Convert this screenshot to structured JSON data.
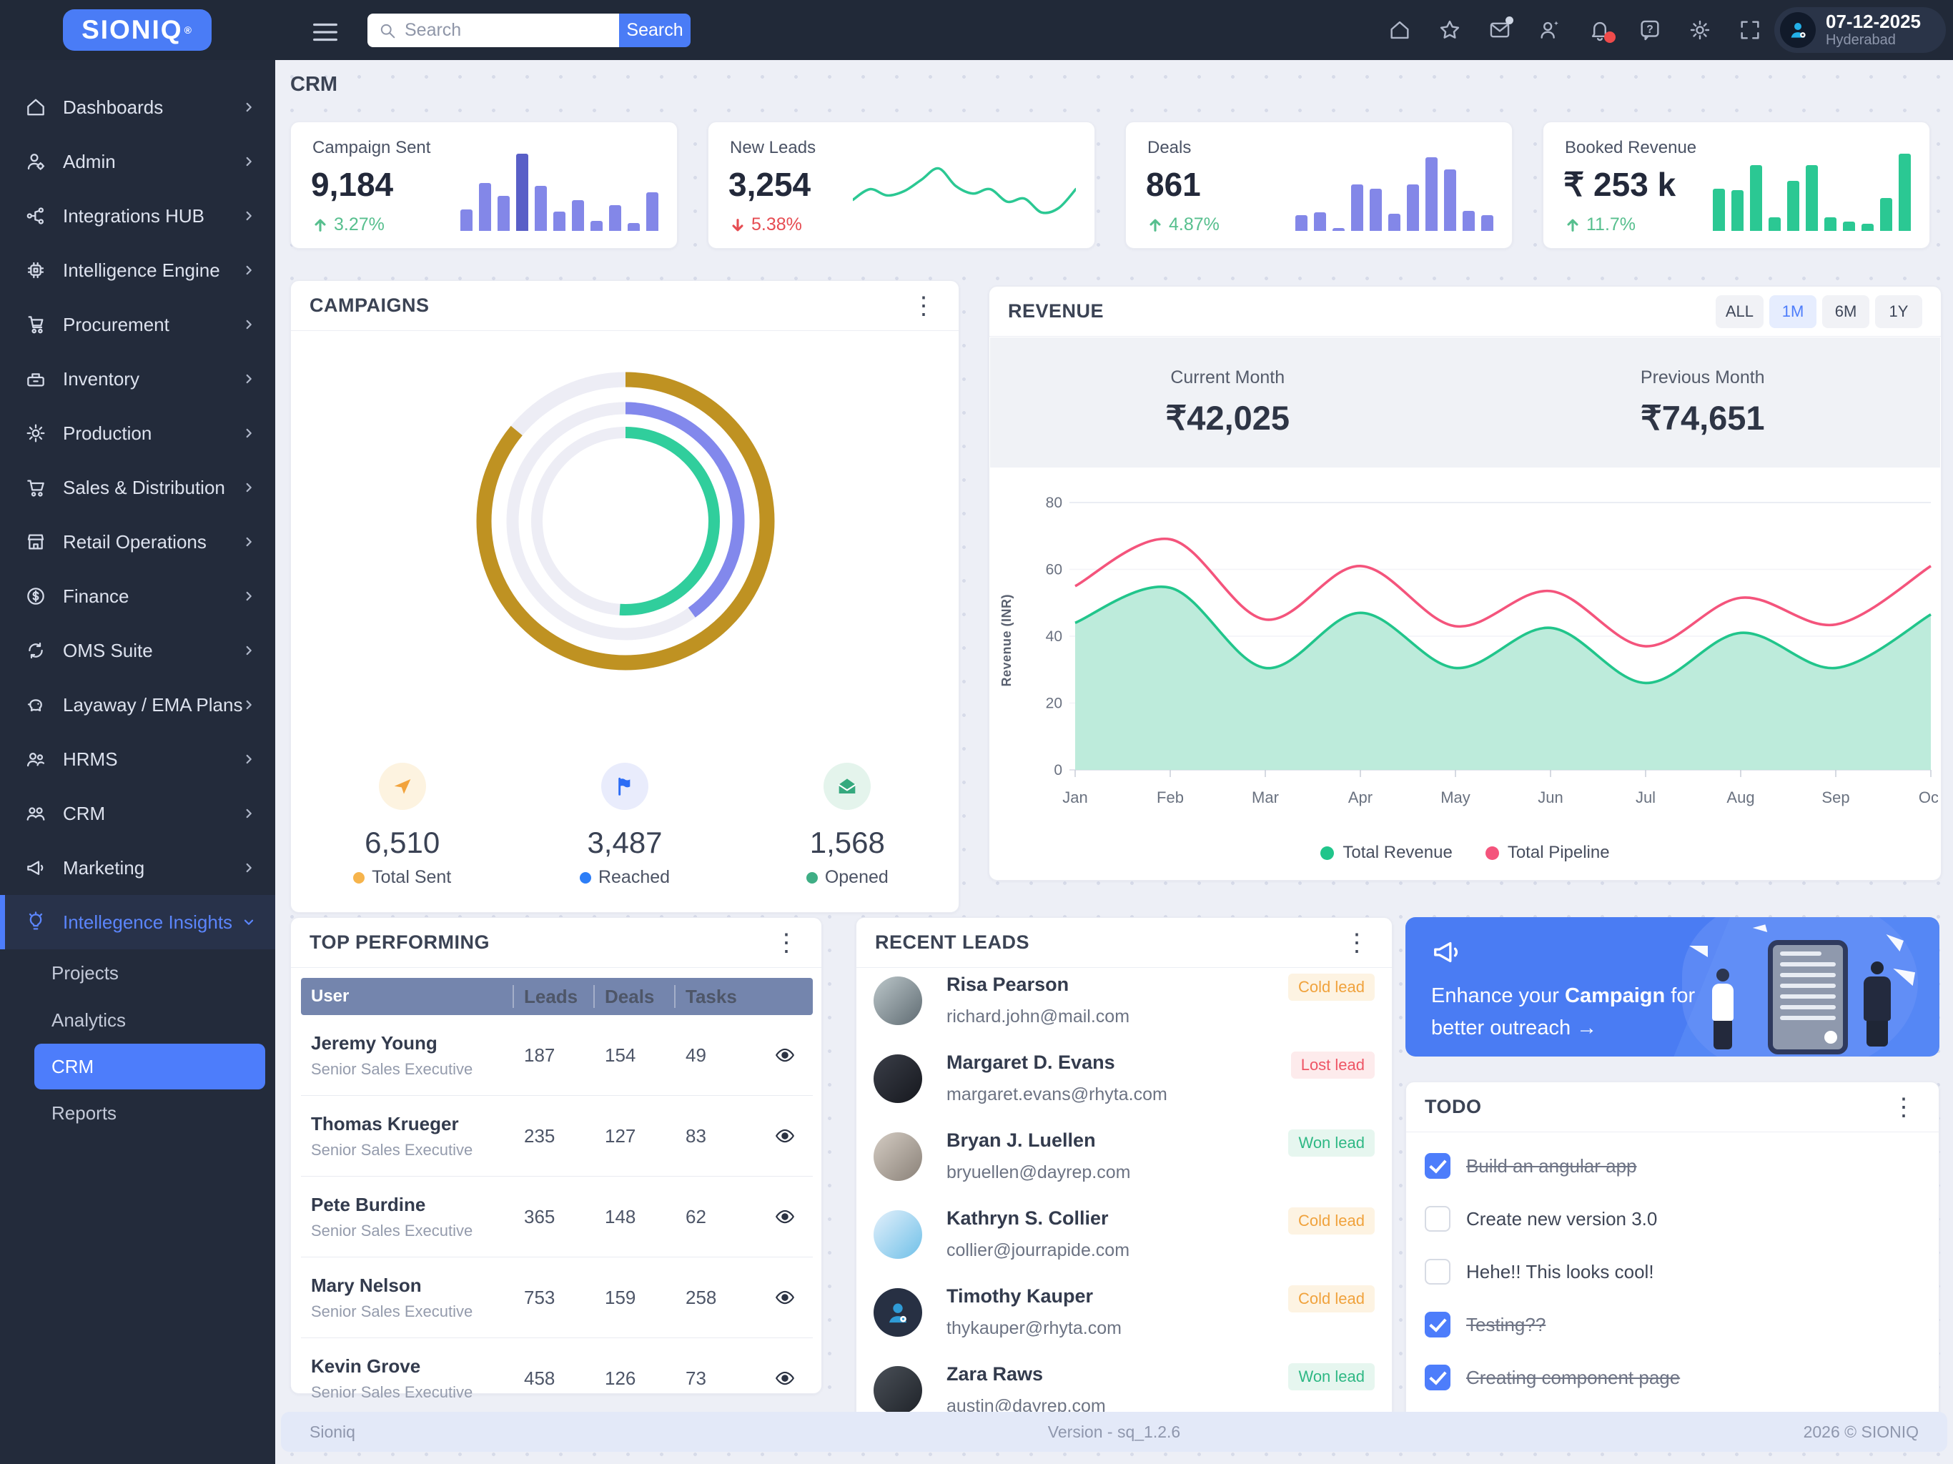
{
  "topbar": {
    "search_placeholder": "Search",
    "search_button": "Search",
    "icons": [
      "home",
      "star",
      "mail",
      "user-add",
      "bell",
      "help",
      "gear",
      "fullscreen"
    ],
    "date": "07-12-2025",
    "location": "Hyderabad"
  },
  "sidebar": {
    "logo": "SIONIQ",
    "items": [
      {
        "label": "Dashboards",
        "icon": "home"
      },
      {
        "label": "Admin",
        "icon": "admin"
      },
      {
        "label": "Integrations HUB",
        "icon": "integrations"
      },
      {
        "label": "Intelligence Engine",
        "icon": "chip"
      },
      {
        "label": "Procurement",
        "icon": "procurement"
      },
      {
        "label": "Inventory",
        "icon": "inventory"
      },
      {
        "label": "Production",
        "icon": "gear"
      },
      {
        "label": "Sales & Distribution",
        "icon": "cart"
      },
      {
        "label": "Retail Operations",
        "icon": "store"
      },
      {
        "label": "Finance",
        "icon": "finance"
      },
      {
        "label": "OMS Suite",
        "icon": "sync"
      },
      {
        "label": "Layaway / EMA Plans",
        "icon": "piggy"
      },
      {
        "label": "HRMS",
        "icon": "hrms"
      },
      {
        "label": "CRM",
        "icon": "people"
      },
      {
        "label": "Marketing",
        "icon": "megaphone"
      },
      {
        "label": "Intellegence Insights",
        "icon": "bulb",
        "active": true,
        "expanded": true,
        "children": [
          {
            "label": "Projects",
            "active": false
          },
          {
            "label": "Analytics",
            "active": false
          },
          {
            "label": "CRM",
            "active": true
          },
          {
            "label": "Reports",
            "active": false
          }
        ]
      }
    ]
  },
  "page": {
    "title": "CRM"
  },
  "kpis": [
    {
      "title": "Campaign Sent",
      "value": "9,184",
      "trend": "3.27%",
      "direction": "up",
      "spark": "campaign_sent_spark"
    },
    {
      "title": "New Leads",
      "value": "3,254",
      "trend": "5.38%",
      "direction": "down",
      "spark": "new_leads_spark"
    },
    {
      "title": "Deals",
      "value": "861",
      "trend": "4.87%",
      "direction": "up",
      "spark": "deals_spark"
    },
    {
      "title": "Booked Revenue",
      "value": "₹ 253 k",
      "trend": "11.7%",
      "direction": "up",
      "spark": "booked_revenue_spark"
    }
  ],
  "campaigns": {
    "title": "CAMPAIGNS",
    "stats": [
      {
        "icon": "send",
        "icon_color": "#f2a33c",
        "icon_bg": "#fdf3e0",
        "value": "6,510",
        "label": "Total Sent",
        "dot": "#f6b44c"
      },
      {
        "icon": "flag",
        "icon_color": "#2d6df5",
        "icon_bg": "#e9ecfc",
        "value": "3,487",
        "label": "Reached",
        "dot": "#2d7ef7"
      },
      {
        "icon": "mail-open",
        "icon_color": "#35a97e",
        "icon_bg": "#e4f4ec",
        "value": "1,568",
        "label": "Opened",
        "dot": "#3fae85"
      }
    ]
  },
  "revenue": {
    "title": "REVENUE",
    "ranges": [
      "ALL",
      "1M",
      "6M",
      "1Y"
    ],
    "active_range": "1M",
    "current_label": "Current Month",
    "current_value": "₹42,025",
    "previous_label": "Previous Month",
    "previous_value": "₹74,651"
  },
  "top_performing": {
    "title": "TOP PERFORMING",
    "columns": [
      "User",
      "Leads",
      "Deals",
      "Tasks"
    ],
    "rows": [
      {
        "name": "Jeremy Young",
        "role": "Senior Sales Executive",
        "leads": "187",
        "deals": "154",
        "tasks": "49"
      },
      {
        "name": "Thomas Krueger",
        "role": "Senior Sales Executive",
        "leads": "235",
        "deals": "127",
        "tasks": "83"
      },
      {
        "name": "Pete Burdine",
        "role": "Senior Sales Executive",
        "leads": "365",
        "deals": "148",
        "tasks": "62"
      },
      {
        "name": "Mary Nelson",
        "role": "Senior Sales Executive",
        "leads": "753",
        "deals": "159",
        "tasks": "258"
      },
      {
        "name": "Kevin Grove",
        "role": "Senior Sales Executive",
        "leads": "458",
        "deals": "126",
        "tasks": "73"
      }
    ]
  },
  "recent_leads": {
    "title": "RECENT LEADS",
    "leads": [
      {
        "name": "Risa Pearson",
        "email": "richard.john@mail.com",
        "badge": "Cold lead",
        "badge_type": "cold",
        "avatar": "av1"
      },
      {
        "name": "Margaret D. Evans",
        "email": "margaret.evans@rhyta.com",
        "badge": "Lost lead",
        "badge_type": "lost",
        "avatar": "av2"
      },
      {
        "name": "Bryan J. Luellen",
        "email": "bryuellen@dayrep.com",
        "badge": "Won lead",
        "badge_type": "won",
        "avatar": "av3"
      },
      {
        "name": "Kathryn S. Collier",
        "email": "collier@jourrapide.com",
        "badge": "Cold lead",
        "badge_type": "cold",
        "avatar": "av4"
      },
      {
        "name": "Timothy Kauper",
        "email": "thykauper@rhyta.com",
        "badge": "Cold lead",
        "badge_type": "cold",
        "avatar": "av5",
        "placeholder": true
      },
      {
        "name": "Zara Raws",
        "email": "austin@dayrep.com",
        "badge": "Won lead",
        "badge_type": "won",
        "avatar": "av6"
      }
    ]
  },
  "banner": {
    "text_prefix": "Enhance your ",
    "text_bold": "Campaign",
    "text_suffix": " for better outreach ",
    "arrow": "→"
  },
  "todo": {
    "title": "TODO",
    "items": [
      {
        "label": "Build an angular app",
        "done": true
      },
      {
        "label": "Create new version 3.0",
        "done": false
      },
      {
        "label": "Hehe!! This looks cool!",
        "done": false
      },
      {
        "label": "Testing??",
        "done": true
      },
      {
        "label": "Creating component page",
        "done": true
      },
      {
        "label": "",
        "done": true
      }
    ]
  },
  "footer": {
    "left": "Sioniq",
    "center": "Version - sq_1.2.6",
    "right": "2026 © SIONIQ"
  },
  "chart_data": [
    {
      "name": "revenue_chart",
      "type": "area",
      "title": "REVENUE",
      "x": [
        "Jan",
        "Feb",
        "Mar",
        "Apr",
        "May",
        "Jun",
        "Jul",
        "Aug",
        "Sep",
        "Oct"
      ],
      "series": [
        {
          "name": "Total Revenue",
          "color": "#21c58b",
          "fill": "#b9ead9",
          "values": [
            44,
            54.5,
            30.5,
            47,
            30.5,
            42.5,
            26,
            41,
            30.5,
            46.5
          ]
        },
        {
          "name": "Total Pipeline",
          "color": "#f4547c",
          "fill": "none",
          "values": [
            55,
            69,
            45,
            61,
            43,
            53.5,
            37,
            51.5,
            43.5,
            61
          ]
        }
      ],
      "ylabel": "Revenue (INR)",
      "ylim": [
        0,
        80
      ],
      "yticks": [
        0,
        20,
        40,
        60,
        80
      ],
      "grid": "horizontal-faint",
      "legend_position": "bottom"
    },
    {
      "name": "campaigns_donut",
      "type": "donut",
      "track_color": "#ededf5",
      "rings": [
        {
          "label": "Total Sent",
          "value": 6510,
          "percent": 86,
          "color": "#bf9222"
        },
        {
          "label": "Reached",
          "value": 3487,
          "percent": 40,
          "color": "#8288ec"
        },
        {
          "label": "Opened",
          "value": 1568,
          "percent": 51,
          "color": "#30ce9c"
        }
      ]
    },
    {
      "name": "campaign_sent_spark",
      "type": "bar",
      "color": "#8387e8",
      "highlight_color": "#595fc7",
      "highlight_index": 3,
      "values": [
        28,
        62,
        45,
        100,
        58,
        25,
        40,
        13,
        33,
        10,
        50
      ]
    },
    {
      "name": "new_leads_spark",
      "type": "line",
      "color": "#2bc893",
      "values": [
        38,
        55,
        45,
        52,
        70,
        88,
        60,
        48,
        55,
        35,
        40,
        18,
        25,
        55
      ]
    },
    {
      "name": "deals_spark",
      "type": "bar",
      "color": "#8387e8",
      "values": [
        20,
        24,
        4,
        60,
        55,
        22,
        60,
        95,
        80,
        26,
        20
      ]
    },
    {
      "name": "booked_revenue_spark",
      "type": "bar",
      "color": "#2bc893",
      "values": [
        55,
        53,
        85,
        18,
        65,
        85,
        18,
        12,
        9,
        43,
        100
      ]
    }
  ]
}
